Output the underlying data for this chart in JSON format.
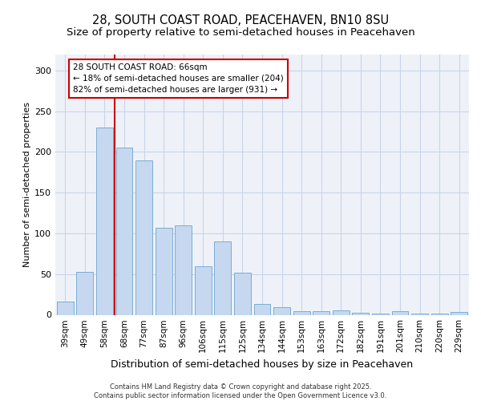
{
  "title_line1": "28, SOUTH COAST ROAD, PEACEHAVEN, BN10 8SU",
  "title_line2": "Size of property relative to semi-detached houses in Peacehaven",
  "xlabel": "Distribution of semi-detached houses by size in Peacehaven",
  "ylabel": "Number of semi-detached properties",
  "categories": [
    "39sqm",
    "49sqm",
    "58sqm",
    "68sqm",
    "77sqm",
    "87sqm",
    "96sqm",
    "106sqm",
    "115sqm",
    "125sqm",
    "134sqm",
    "144sqm",
    "153sqm",
    "163sqm",
    "172sqm",
    "182sqm",
    "191sqm",
    "201sqm",
    "210sqm",
    "220sqm",
    "229sqm"
  ],
  "values": [
    16,
    53,
    230,
    205,
    190,
    107,
    110,
    60,
    90,
    52,
    13,
    9,
    4,
    4,
    5,
    2,
    1,
    4,
    1,
    1,
    3
  ],
  "bar_color": "#c5d8f0",
  "bar_edge_color": "#7badd4",
  "vline_x": 3.0,
  "vline_color": "#cc0000",
  "annotation_box_text": "28 SOUTH COAST ROAD: 66sqm\n← 18% of semi-detached houses are smaller (204)\n82% of semi-detached houses are larger (931) →",
  "ylim": [
    0,
    320
  ],
  "yticks": [
    0,
    50,
    100,
    150,
    200,
    250,
    300
  ],
  "grid_color": "#c8d4e8",
  "background_color": "#eef2f8",
  "footer_text": "Contains HM Land Registry data © Crown copyright and database right 2025.\nContains public sector information licensed under the Open Government Licence v3.0.",
  "title_fontsize": 10.5,
  "subtitle_fontsize": 9.5,
  "annotation_fontsize": 7.5,
  "footer_fontsize": 6.0,
  "ylabel_fontsize": 8,
  "xlabel_fontsize": 9
}
